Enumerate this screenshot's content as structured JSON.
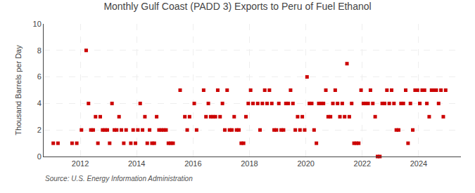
{
  "chart_data": {
    "type": "scatter",
    "title": "Monthly Gulf Coast (PADD 3) Exports to Peru of Fuel Ethanol",
    "ylabel": "Thousand Barrels per Day",
    "annotations": [
      "Source: U.S. Energy Information Administration"
    ],
    "color": "#cc0000",
    "marker": "square",
    "grid": true,
    "xlim": [
      2010.7,
      2025.5
    ],
    "xticks": [
      2012,
      2014,
      2016,
      2018,
      2020,
      2022,
      2024
    ],
    "ylim": [
      0,
      10
    ],
    "yticks": [
      0,
      2,
      4,
      6,
      8,
      10
    ],
    "x": [
      2011.0416667,
      2011.2083333,
      2011.7083333,
      2011.875,
      2012.0416667,
      2012.2083333,
      2012.2916667,
      2012.375,
      2012.4583333,
      2012.5416667,
      2012.625,
      2012.7083333,
      2012.7916667,
      2012.875,
      2012.9583333,
      2013.0416667,
      2013.125,
      2013.2083333,
      2013.2916667,
      2013.375,
      2013.4583333,
      2013.5416667,
      2013.625,
      2013.7916667,
      2013.875,
      2013.9583333,
      2014.0416667,
      2014.125,
      2014.2083333,
      2014.2916667,
      2014.375,
      2014.4583333,
      2014.5416667,
      2014.625,
      2014.7083333,
      2014.7916667,
      2014.875,
      2014.9583333,
      2015.0416667,
      2015.125,
      2015.2083333,
      2015.2916667,
      2015.5416667,
      2015.7083333,
      2015.7916667,
      2015.875,
      2016.0416667,
      2016.125,
      2016.375,
      2016.4583333,
      2016.5416667,
      2016.625,
      2016.7083333,
      2016.7916667,
      2016.875,
      2016.9583333,
      2017.0416667,
      2017.125,
      2017.2083333,
      2017.2916667,
      2017.375,
      2017.4583333,
      2017.5416667,
      2017.625,
      2017.7083333,
      2017.7916667,
      2017.875,
      2017.9583333,
      2018.0416667,
      2018.125,
      2018.2916667,
      2018.375,
      2018.4583333,
      2018.5416667,
      2018.625,
      2018.7083333,
      2018.7916667,
      2018.875,
      2018.9583333,
      2019.0416667,
      2019.125,
      2019.2083333,
      2019.2916667,
      2019.375,
      2019.4583333,
      2019.5416667,
      2019.625,
      2019.7083333,
      2019.7916667,
      2019.875,
      2019.9583333,
      2020.0416667,
      2020.125,
      2020.2083333,
      2020.2916667,
      2020.375,
      2020.4583333,
      2020.5416667,
      2020.625,
      2020.7083333,
      2020.7916667,
      2020.875,
      2020.9583333,
      2021.0416667,
      2021.125,
      2021.2083333,
      2021.2916667,
      2021.375,
      2021.4583333,
      2021.5416667,
      2021.625,
      2021.7083333,
      2021.7916667,
      2021.875,
      2021.9583333,
      2022.0416667,
      2022.125,
      2022.2083333,
      2022.2916667,
      2022.375,
      2022.4583333,
      2022.5416667,
      2022.625,
      2022.7083333,
      2022.7916667,
      2022.875,
      2022.9583333,
      2023.0416667,
      2023.125,
      2023.2083333,
      2023.2916667,
      2023.375,
      2023.4583333,
      2023.5416667,
      2023.625,
      2023.7083333,
      2023.7916667,
      2023.875,
      2023.9583333,
      2024.0416667,
      2024.125,
      2024.2083333,
      2024.2916667,
      2024.375,
      2024.4583333,
      2024.5416667,
      2024.625,
      2024.7083333,
      2024.7916667,
      2024.875,
      2024.9583333
    ],
    "values": [
      1,
      1,
      1,
      1,
      2,
      8,
      4,
      2,
      2,
      3,
      1,
      3,
      2,
      2,
      2,
      1,
      4,
      2,
      2,
      3,
      2,
      1,
      2,
      1,
      2,
      1,
      2,
      4,
      2,
      3,
      1,
      2,
      1,
      1,
      3,
      2,
      2,
      2,
      2,
      1,
      1,
      1,
      5,
      3,
      2,
      3,
      4,
      2,
      5,
      3,
      4,
      3,
      3,
      3,
      5,
      3,
      4,
      2,
      5,
      2,
      2,
      3,
      2,
      2,
      1,
      1,
      3,
      4,
      5,
      4,
      4,
      2,
      4,
      5,
      4,
      5,
      4,
      2,
      2,
      4,
      2,
      2,
      4,
      4,
      5,
      4,
      2,
      3,
      2,
      3,
      2,
      6,
      4,
      4,
      2,
      1,
      4,
      4,
      4,
      5,
      3,
      3,
      4,
      5,
      4,
      3,
      4,
      3,
      7,
      3,
      4,
      1,
      1,
      1,
      5,
      4,
      4,
      4,
      5,
      4,
      3,
      0,
      0,
      4,
      4,
      5,
      4,
      5,
      4,
      2,
      2,
      4,
      4,
      5,
      1,
      4,
      2,
      5,
      5,
      4,
      5,
      5,
      4,
      3,
      5,
      5,
      5,
      4,
      5,
      3,
      5
    ]
  }
}
